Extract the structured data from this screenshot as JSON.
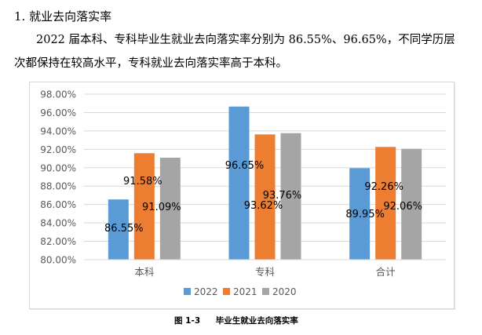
{
  "document": {
    "heading": "1. 就业去向落实率",
    "paragraph_line1": "2022 届本科、专科毕业生就业去向落实率分别为 86.55%、96.65%，不同学历层",
    "paragraph_line2": "次都保持在较高水平，专科就业去向落实率高于本科。",
    "caption_figure": "图 1-3",
    "caption_title": "毕业生就业去向落实率"
  },
  "colors": {
    "2022": "#5b9bd5",
    "2021": "#ed7d31",
    "2020": "#a5a5a5",
    "gridline": "#d9d9d9",
    "axis_text": "#595959"
  },
  "chart_data": {
    "type": "bar",
    "title": "毕业生就业去向落实率",
    "categories": [
      "本科",
      "专科",
      "合计"
    ],
    "series": [
      {
        "name": "2022",
        "values": [
          86.55,
          96.65,
          89.95
        ],
        "labels": [
          "86.55%",
          "96.65%",
          "89.95%"
        ]
      },
      {
        "name": "2021",
        "values": [
          91.58,
          93.62,
          92.26
        ],
        "labels": [
          "91.58%",
          "93.62%",
          "92.26%"
        ]
      },
      {
        "name": "2020",
        "values": [
          91.09,
          93.76,
          92.06
        ],
        "labels": [
          "91.09%",
          "93.76%",
          "92.06%"
        ]
      }
    ],
    "xlabel": "",
    "ylabel": "",
    "ylim": [
      80,
      98
    ],
    "yticks": [
      "80.00%",
      "82.00%",
      "84.00%",
      "86.00%",
      "88.00%",
      "90.00%",
      "92.00%",
      "94.00%",
      "96.00%",
      "98.00%"
    ],
    "grid": true,
    "legend_position": "bottom"
  }
}
